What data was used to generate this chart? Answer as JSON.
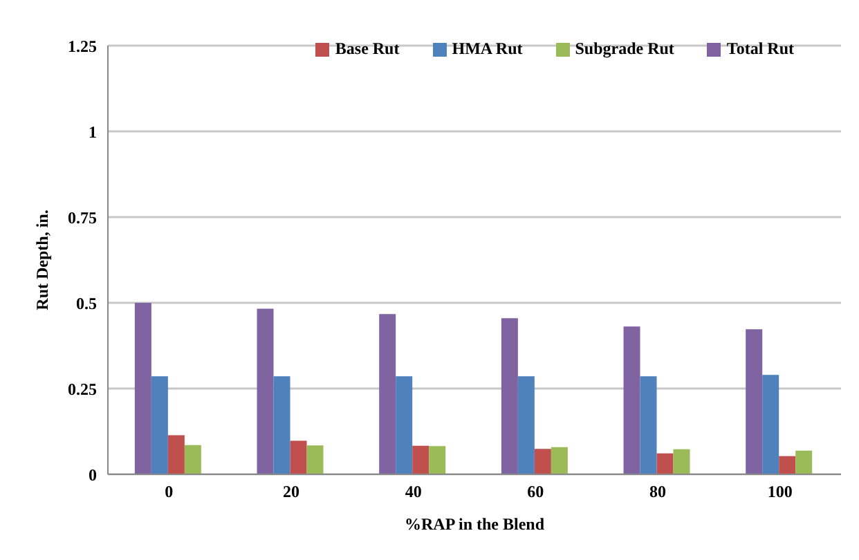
{
  "chart_data": {
    "type": "bar",
    "xlabel": "%RAP in the Blend",
    "ylabel": "Rut Depth, in.",
    "categories": [
      "0",
      "20",
      "40",
      "60",
      "80",
      "100"
    ],
    "series": [
      {
        "name": "Total Rut",
        "color": "#8064a2",
        "values": [
          0.5,
          0.483,
          0.467,
          0.455,
          0.431,
          0.423
        ]
      },
      {
        "name": "HMA Rut",
        "color": "#4f81bd",
        "values": [
          0.286,
          0.286,
          0.286,
          0.286,
          0.286,
          0.29
        ]
      },
      {
        "name": "Base Rut",
        "color": "#c0504d",
        "values": [
          0.114,
          0.098,
          0.083,
          0.074,
          0.061,
          0.053
        ]
      },
      {
        "name": "Subgrade Rut",
        "color": "#9bbb59",
        "values": [
          0.085,
          0.084,
          0.082,
          0.079,
          0.073,
          0.069
        ]
      }
    ],
    "ylim": [
      0,
      1.25
    ],
    "yticks": [
      0,
      0.25,
      0.5,
      0.75,
      1,
      1.25
    ],
    "grid": "y",
    "legend": "top right"
  }
}
